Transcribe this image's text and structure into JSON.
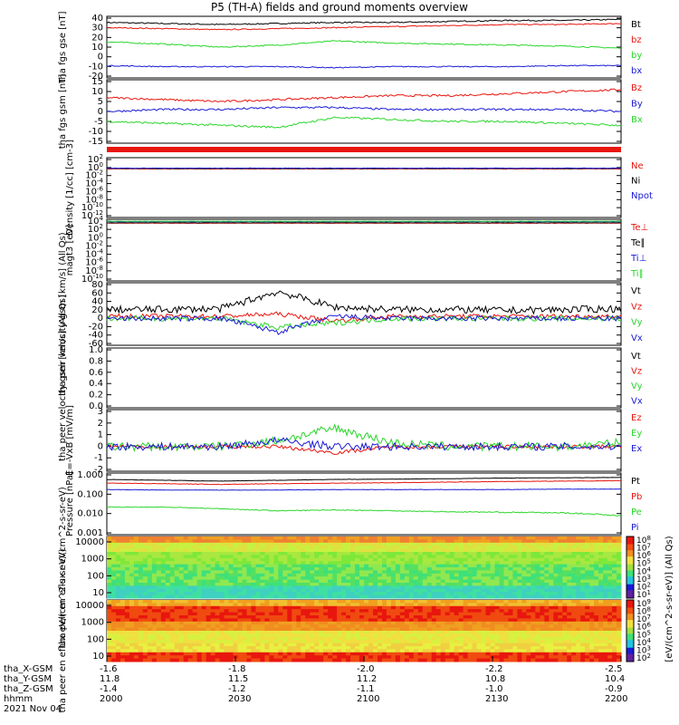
{
  "title": "P5 (TH-A) fields and ground moments overview",
  "colors": {
    "black": "#000000",
    "red": "#e8160e",
    "green": "#2ad62a",
    "blue": "#1a1ad6"
  },
  "chart_data": [
    {
      "type": "line",
      "ylabel": "tha fgs gse [nT]",
      "ylim": [
        -20,
        40
      ],
      "yticks": [
        "40",
        "30",
        "20",
        "10",
        "0",
        "-10",
        "-20"
      ],
      "series": [
        {
          "name": "Bt",
          "color": "black",
          "base": [
            34,
            33,
            32,
            33,
            34,
            34,
            35,
            36,
            36,
            37
          ],
          "noise": 0.6
        },
        {
          "name": "bz",
          "color": "red",
          "base": [
            29,
            28,
            27,
            28,
            29,
            30,
            31,
            32,
            32,
            33
          ],
          "noise": 0.5
        },
        {
          "name": "by",
          "color": "green",
          "base": [
            15,
            13,
            10,
            12,
            16,
            14,
            13,
            12,
            11,
            9
          ],
          "noise": 0.6
        },
        {
          "name": "bx",
          "color": "blue",
          "base": [
            -8,
            -9,
            -9,
            -9,
            -10,
            -9,
            -9,
            -9,
            -8,
            -8
          ],
          "noise": 0.5
        }
      ]
    },
    {
      "type": "line",
      "ylabel": "tha fgs gsm [nT]",
      "ylim": [
        -17,
        15
      ],
      "yticks": [
        "15",
        "10",
        "5",
        "0",
        "-5",
        "-10",
        "-15"
      ],
      "series": [
        {
          "name": "Bz",
          "color": "red",
          "base": [
            6,
            5,
            4,
            5,
            6,
            7,
            7,
            8,
            9,
            10
          ],
          "noise": 0.5
        },
        {
          "name": "By",
          "color": "blue",
          "base": [
            -1,
            0,
            0,
            1,
            1,
            0,
            0,
            0,
            0,
            -1
          ],
          "noise": 0.5
        },
        {
          "name": "Bx",
          "color": "green",
          "base": [
            -6,
            -7,
            -8,
            -9,
            -4,
            -5,
            -6,
            -6,
            -7,
            -8
          ],
          "noise": 0.5
        }
      ]
    },
    {
      "type": "line",
      "ylabel": "Density [1/cc] [cm-3]",
      "ylim": [
        -13,
        3
      ],
      "log": true,
      "yticks": [
        "10^2",
        "10^0",
        "10^-2",
        "10^-4",
        "10^-6",
        "10^-8",
        "10^-10",
        "10^-12"
      ],
      "series": [
        {
          "name": "Ne",
          "color": "red",
          "base": [
            0,
            0,
            0,
            0,
            0,
            0,
            0,
            0,
            0,
            0
          ],
          "noise": 0.05
        },
        {
          "name": "Ni",
          "color": "black",
          "base": [
            0.1,
            0.1,
            0.1,
            0.1,
            0.1,
            0.1,
            0.1,
            0.1,
            0.1,
            0.1
          ],
          "noise": 0.05
        },
        {
          "name": "Npot",
          "color": "blue",
          "base": [
            0.2,
            0.2,
            0.2,
            0.2,
            0.2,
            0.2,
            0.2,
            0.2,
            0.2,
            0.2
          ],
          "noise": 0.05
        }
      ]
    },
    {
      "type": "line",
      "ylabel": "magt3 [eV]",
      "ylim": [
        -12,
        4
      ],
      "log": true,
      "yticks": [
        "10^4",
        "10^2",
        "10^0",
        "10^-2",
        "10^-4",
        "10^-6",
        "10^-8",
        "10^-10"
      ],
      "series": [
        {
          "name": "Te⊥",
          "color": "red",
          "base": [
            3,
            3,
            3,
            3,
            3,
            3,
            3,
            3,
            3,
            3
          ],
          "noise": 0.05
        },
        {
          "name": "Te∥",
          "color": "black",
          "base": [
            3.1,
            3.1,
            3.1,
            3.1,
            3.1,
            3.1,
            3.1,
            3.1,
            3.1,
            3.1
          ],
          "noise": 0.05
        },
        {
          "name": "Ti⊥",
          "color": "blue",
          "base": [
            3.4,
            3.4,
            3.4,
            3.4,
            3.4,
            3.4,
            3.4,
            3.4,
            3.4,
            3.4
          ],
          "noise": 0.04
        },
        {
          "name": "Ti∥",
          "color": "green",
          "base": [
            3.5,
            3.5,
            3.5,
            3.5,
            3.5,
            3.5,
            3.5,
            3.5,
            3.5,
            3.5
          ],
          "noise": 0.04
        }
      ]
    },
    {
      "type": "line",
      "ylabel": "tha peir velocity gsm [km/s] (All Qs)",
      "ylim": [
        -60,
        80
      ],
      "yticks": [
        "80",
        "60",
        "40",
        "20",
        "0",
        "-20",
        "-40",
        "-60"
      ],
      "series": [
        {
          "name": "Vt",
          "color": "black",
          "base": [
            20,
            20,
            22,
            60,
            25,
            20,
            20,
            18,
            20,
            22
          ],
          "noise": 8
        },
        {
          "name": "Vz",
          "color": "red",
          "base": [
            5,
            5,
            5,
            10,
            -5,
            5,
            5,
            5,
            5,
            5
          ],
          "noise": 5
        },
        {
          "name": "Vy",
          "color": "green",
          "base": [
            0,
            0,
            0,
            -20,
            -10,
            0,
            0,
            0,
            0,
            0
          ],
          "noise": 6
        },
        {
          "name": "Vx",
          "color": "blue",
          "base": [
            0,
            0,
            0,
            -30,
            5,
            0,
            0,
            0,
            0,
            0
          ],
          "noise": 6
        }
      ]
    },
    {
      "type": "line",
      "ylabel": "tha peer velocity gsm [km/s] (All Qs)",
      "ylim": [
        0,
        1
      ],
      "yticks": [
        "1.0",
        "0.8",
        "0.6",
        "0.4",
        "0.2",
        "0.0"
      ],
      "series": [
        {
          "name": "Vt",
          "color": "black",
          "base": [],
          "noise": 0
        },
        {
          "name": "Vz",
          "color": "red",
          "base": [],
          "noise": 0
        },
        {
          "name": "Vy",
          "color": "green",
          "base": [],
          "noise": 0
        },
        {
          "name": "Vx",
          "color": "blue",
          "base": [],
          "noise": 0
        }
      ]
    },
    {
      "type": "line",
      "ylabel": "E=-VxB [mV/m]",
      "ylim": [
        -2,
        3
      ],
      "yticks": [
        "3",
        "2",
        "1",
        "0",
        "-1",
        "-2"
      ],
      "series": [
        {
          "name": "Ez",
          "color": "red",
          "base": [
            0,
            0,
            0,
            0,
            -0.5,
            0,
            0,
            0,
            0,
            0
          ],
          "noise": 0.15
        },
        {
          "name": "Ey",
          "color": "green",
          "base": [
            0,
            0,
            0,
            0.5,
            1.5,
            0.3,
            0,
            0,
            0,
            0.3
          ],
          "noise": 0.35
        },
        {
          "name": "Ex",
          "color": "blue",
          "base": [
            0,
            0,
            0,
            0.5,
            0,
            0,
            0,
            0,
            0,
            0
          ],
          "noise": 0.3
        }
      ]
    },
    {
      "type": "line",
      "ylabel": "Pressure [nPa]",
      "ylim": [
        0.0015,
        1.2
      ],
      "log10": true,
      "yticks": [
        "1.000",
        "0.100",
        "0.010",
        "0.001"
      ],
      "series": [
        {
          "name": "Pt",
          "color": "black",
          "base": [
            0.6,
            0.55,
            0.5,
            0.55,
            0.6,
            0.62,
            0.65,
            0.7,
            0.72,
            0.75
          ],
          "noise": 0.01
        },
        {
          "name": "Pb",
          "color": "red",
          "base": [
            0.4,
            0.38,
            0.35,
            0.38,
            0.4,
            0.42,
            0.45,
            0.48,
            0.5,
            0.52
          ],
          "noise": 0.01
        },
        {
          "name": "Pe",
          "color": "green",
          "base": [
            0.03,
            0.03,
            0.025,
            0.02,
            0.022,
            0.02,
            0.018,
            0.017,
            0.016,
            0.012
          ],
          "noise": 0.001
        },
        {
          "name": "Pi",
          "color": "blue",
          "base": [
            0.2,
            0.19,
            0.19,
            0.19,
            0.2,
            0.2,
            0.2,
            0.2,
            0.21,
            0.21
          ],
          "noise": 0.004
        }
      ]
    },
    {
      "type": "heatmap",
      "ylabel": "tha peir en eflux eV/(cm^2-s-sr-eV)",
      "yticks": [
        "10000",
        "1000",
        "100",
        "10"
      ],
      "colorbar": {
        "ticks": [
          "10^8",
          "10^7",
          "10^6",
          "10^5",
          "10^4",
          "10^3",
          "10^2",
          "10^1"
        ],
        "label": "[eV/(cm^2-s-sr-eV)] (All Qs)"
      }
    },
    {
      "type": "heatmap",
      "ylabel": "tha peer en eflux eV/(cm^2-s-sr-eV)",
      "yticks": [
        "10000",
        "1000",
        "100",
        "10"
      ],
      "colorbar": {
        "ticks": [
          "10^9",
          "10^8",
          "10^7",
          "10^6",
          "10^5",
          "10^4",
          "10^3",
          "10^2"
        ],
        "label": "[eV/(cm^2-s-sr-eV)] (All Qs)"
      }
    }
  ],
  "footer": {
    "rows": [
      {
        "label": "tha_X-GSM",
        "values": [
          "-1.6",
          "-1.8",
          "-2.0",
          "-2.2",
          "-2.5"
        ]
      },
      {
        "label": "tha_Y-GSM",
        "values": [
          "11.8",
          "11.5",
          "11.2",
          "10.8",
          "10.4"
        ]
      },
      {
        "label": "tha_Z-GSM",
        "values": [
          "-1.4",
          "-1.2",
          "-1.1",
          "-1.0",
          "-0.9"
        ]
      },
      {
        "label": "hhmm",
        "values": [
          "2000",
          "2030",
          "2100",
          "2130",
          "2200"
        ]
      }
    ],
    "date": "2021 Nov 04"
  }
}
